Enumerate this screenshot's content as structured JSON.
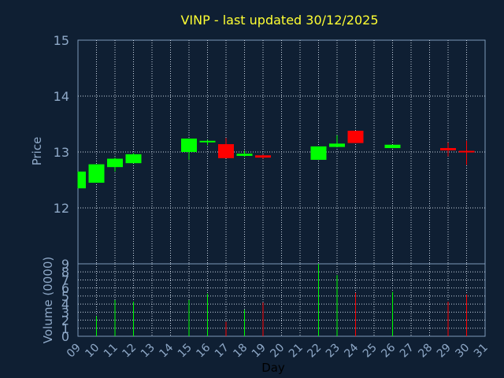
{
  "chart_data": {
    "type": "candlestick",
    "title": "VINP - last updated 30/12/2025",
    "xlabel": "Day",
    "ylabel": "Price",
    "volume_label": "Volume (0000)",
    "x_ticks": [
      "09",
      "10",
      "11",
      "12",
      "13",
      "14",
      "15",
      "16",
      "17",
      "18",
      "19",
      "20",
      "21",
      "22",
      "23",
      "24",
      "25",
      "26",
      "27",
      "28",
      "29",
      "30",
      "31"
    ],
    "price_ticks": [
      12,
      13,
      14,
      15
    ],
    "volume_ticks": [
      0,
      1,
      2,
      3,
      4,
      5,
      6,
      7,
      8,
      9
    ],
    "ylim": [
      11,
      15
    ],
    "volume_ylim": [
      0,
      9
    ],
    "grid": true,
    "colors": {
      "background": "#0f1f33",
      "axis": "#7d98b8",
      "grid": "#c8d4e2",
      "title": "#ffff33",
      "up": "#00ff00",
      "down": "#ff0000",
      "label": "#8fa9c8"
    },
    "candles": [
      {
        "day": 9,
        "open": 12.35,
        "high": 12.65,
        "low": 12.35,
        "close": 12.65,
        "volume": 0
      },
      {
        "day": 10,
        "open": 12.45,
        "high": 12.78,
        "low": 12.45,
        "close": 12.78,
        "volume": 2.5
      },
      {
        "day": 11,
        "open": 12.73,
        "high": 12.9,
        "low": 12.65,
        "close": 12.88,
        "volume": 4.5
      },
      {
        "day": 12,
        "open": 12.8,
        "high": 12.98,
        "low": 12.8,
        "close": 12.96,
        "volume": 4.3
      },
      {
        "day": 15,
        "open": 13.0,
        "high": 13.24,
        "low": 12.86,
        "close": 13.24,
        "volume": 4.5
      },
      {
        "day": 16,
        "open": 13.18,
        "high": 13.22,
        "low": 13.12,
        "close": 13.2,
        "volume": 5.3
      },
      {
        "day": 17,
        "open": 13.14,
        "high": 13.25,
        "low": 12.89,
        "close": 12.89,
        "volume": 1.8
      },
      {
        "day": 18,
        "open": 12.93,
        "high": 13.03,
        "low": 12.91,
        "close": 12.97,
        "volume": 3.3
      },
      {
        "day": 19,
        "open": 12.94,
        "high": 12.95,
        "low": 12.88,
        "close": 12.9,
        "volume": 4.2
      },
      {
        "day": 22,
        "open": 12.86,
        "high": 13.1,
        "low": 12.86,
        "close": 13.1,
        "volume": 9.0
      },
      {
        "day": 23,
        "open": 13.09,
        "high": 13.3,
        "low": 13.09,
        "close": 13.15,
        "volume": 7.6
      },
      {
        "day": 24,
        "open": 13.38,
        "high": 13.38,
        "low": 13.16,
        "close": 13.16,
        "volume": 5.4
      },
      {
        "day": 26,
        "open": 13.07,
        "high": 13.13,
        "low": 13.07,
        "close": 13.13,
        "volume": 5.5
      },
      {
        "day": 29,
        "open": 13.07,
        "high": 13.17,
        "low": 12.92,
        "close": 13.03,
        "volume": 4.3
      },
      {
        "day": 30,
        "open": 13.02,
        "high": 13.2,
        "low": 12.77,
        "close": 13.01,
        "volume": 5.2
      }
    ]
  }
}
